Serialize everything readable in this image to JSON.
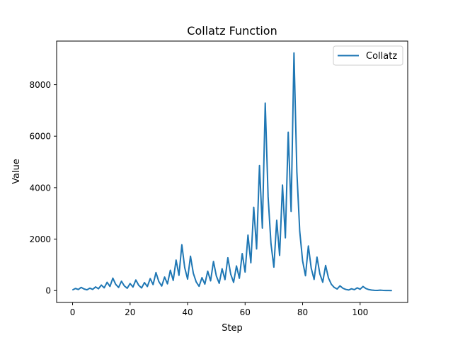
{
  "chart_data": {
    "type": "line",
    "title": "Collatz Function",
    "xlabel": "Step",
    "ylabel": "Value",
    "xlim": [
      -5.55,
      116.55
    ],
    "ylim": [
      -461.5,
      9694.5
    ],
    "xticks": [
      0,
      20,
      40,
      60,
      80,
      100
    ],
    "yticks": [
      0,
      2000,
      4000,
      6000,
      8000
    ],
    "xtick_labels": [
      "0",
      "20",
      "40",
      "60",
      "80",
      "100"
    ],
    "ytick_labels": [
      "0",
      "2000",
      "4000",
      "6000",
      "8000"
    ],
    "grid": false,
    "legend_position": "top-right",
    "series": [
      {
        "name": "Collatz",
        "color": "#1f77b4",
        "x": [
          0,
          1,
          2,
          3,
          4,
          5,
          6,
          7,
          8,
          9,
          10,
          11,
          12,
          13,
          14,
          15,
          16,
          17,
          18,
          19,
          20,
          21,
          22,
          23,
          24,
          25,
          26,
          27,
          28,
          29,
          30,
          31,
          32,
          33,
          34,
          35,
          36,
          37,
          38,
          39,
          40,
          41,
          42,
          43,
          44,
          45,
          46,
          47,
          48,
          49,
          50,
          51,
          52,
          53,
          54,
          55,
          56,
          57,
          58,
          59,
          60,
          61,
          62,
          63,
          64,
          65,
          66,
          67,
          68,
          69,
          70,
          71,
          72,
          73,
          74,
          75,
          76,
          77,
          78,
          79,
          80,
          81,
          82,
          83,
          84,
          85,
          86,
          87,
          88,
          89,
          90,
          91,
          92,
          93,
          94,
          95,
          96,
          97,
          98,
          99,
          100,
          101,
          102,
          103,
          104,
          105,
          106,
          107,
          108,
          109,
          110,
          111
        ],
        "values": [
          27,
          82,
          41,
          124,
          62,
          31,
          94,
          47,
          142,
          71,
          214,
          107,
          322,
          161,
          484,
          242,
          121,
          364,
          182,
          91,
          274,
          137,
          412,
          206,
          103,
          310,
          155,
          466,
          233,
          700,
          350,
          175,
          526,
          263,
          790,
          395,
          1186,
          593,
          1780,
          890,
          445,
          1336,
          668,
          334,
          167,
          502,
          251,
          754,
          377,
          1132,
          566,
          283,
          850,
          425,
          1276,
          638,
          319,
          958,
          479,
          1438,
          719,
          2158,
          1079,
          3238,
          1619,
          4858,
          2429,
          7288,
          3644,
          1822,
          911,
          2734,
          1367,
          4102,
          2051,
          6154,
          3077,
          9232,
          4616,
          2308,
          1154,
          577,
          1732,
          866,
          433,
          1300,
          650,
          325,
          976,
          488,
          244,
          122,
          61,
          184,
          92,
          46,
          23,
          70,
          35,
          106,
          53,
          160,
          80,
          40,
          20,
          10,
          5,
          16,
          8,
          4,
          2,
          1
        ]
      }
    ]
  }
}
